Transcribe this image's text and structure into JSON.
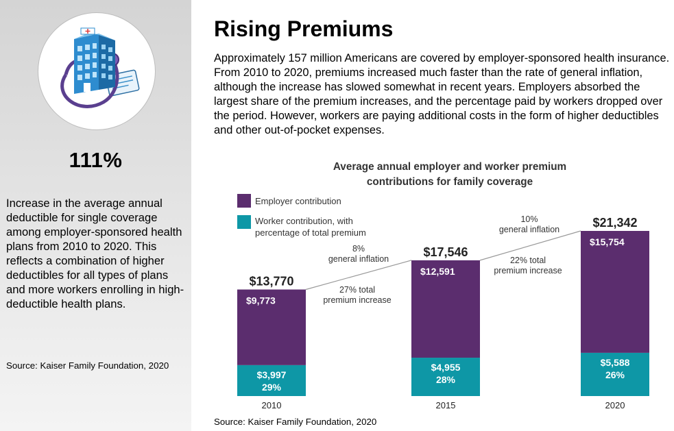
{
  "sidebar": {
    "icon": "hospital-stethoscope-icon",
    "stat_value": "111%",
    "stat_description": "Increase in the average annual deductible for single coverage among employer-sponsored health plans from 2010 to 2020. This reflects a combination of higher deductibles for all types of plans and more workers enrolling in high-deductible health plans.",
    "source": "Source: Kaiser Family Foundation, 2020"
  },
  "main": {
    "title": "Rising Premiums",
    "intro": "Approximately 157 million Americans are covered by employer-sponsored health insurance. From 2010 to 2020, premiums increased much faster than the rate of general inflation, although the increase has slowed somewhat in recent years. Employers absorbed the largest share of the premium increases, and the percentage paid by workers dropped over the period. However, workers are paying additional costs in the form of higher deductibles and other out-of-pocket expenses.",
    "source": "Source: Kaiser Family Foundation, 2020"
  },
  "chart_data": {
    "type": "bar",
    "stacked": true,
    "title": "Average annual employer and worker premium contributions for family coverage",
    "categories": [
      "2010",
      "2015",
      "2020"
    ],
    "totals": [
      "$13,770",
      "$17,546",
      "$21,342"
    ],
    "series": [
      {
        "name": "Worker contribution, with percentage of total premium",
        "color": "#0e97a6",
        "values": [
          3997,
          4955,
          5588
        ],
        "labels": [
          "$3,997",
          "$4,955",
          "$5,588"
        ],
        "percent_labels": [
          "29%",
          "28%",
          "26%"
        ]
      },
      {
        "name": "Employer contribution",
        "color": "#5b2d6e",
        "values": [
          9773,
          12591,
          15754
        ],
        "labels": [
          "$9,773",
          "$12,591",
          "$15,754"
        ]
      }
    ],
    "annotations": [
      {
        "between": [
          "2010",
          "2015"
        ],
        "inflation": [
          "8%",
          "general inflation"
        ],
        "increase": [
          "27% total",
          "premium increase"
        ]
      },
      {
        "between": [
          "2015",
          "2020"
        ],
        "inflation": [
          "10%",
          "general inflation"
        ],
        "increase": [
          "22% total",
          "premium increase"
        ]
      }
    ],
    "legend_position": "top-left",
    "grid": false
  }
}
